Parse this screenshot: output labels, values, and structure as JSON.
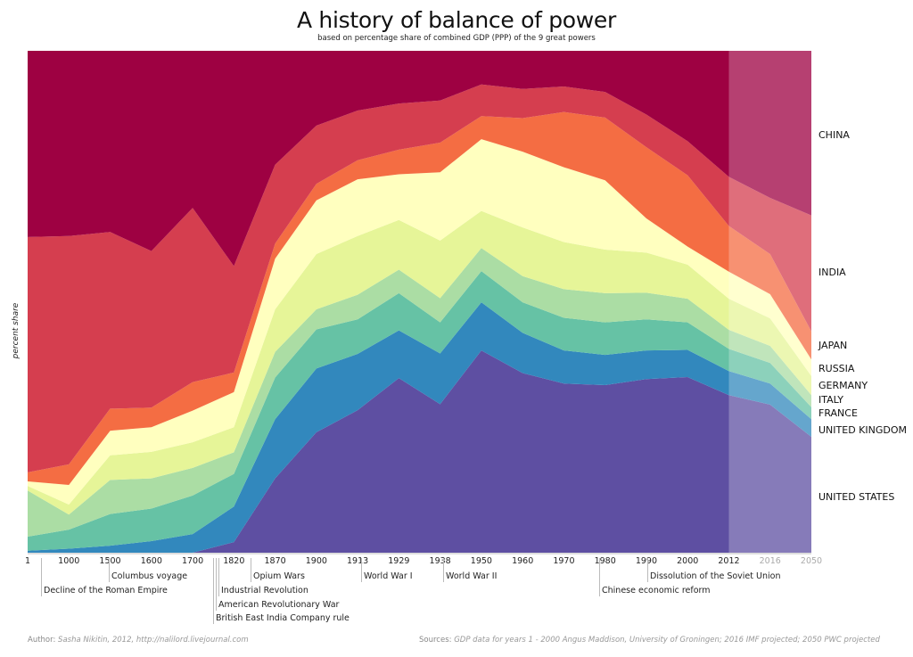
{
  "chart_data": {
    "type": "area",
    "stacked": true,
    "title": "A history of  balance of power",
    "subtitle": "based on percentage share of combined GDP (PPP) of the 9 great powers",
    "ylabel": "percent share",
    "xlabel": "",
    "ylim": [
      0,
      100
    ],
    "categories": [
      "1",
      "1000",
      "1500",
      "1600",
      "1700",
      "1820",
      "1870",
      "1900",
      "1913",
      "1929",
      "1938",
      "1950",
      "1960",
      "1970",
      "1980",
      "1990",
      "2000",
      "2012",
      "2016",
      "2050"
    ],
    "projected_categories": [
      "2016",
      "2050"
    ],
    "series": [
      {
        "name": "UNITED STATES",
        "color": "#5e4fa2",
        "values": [
          0,
          0,
          0,
          0,
          0,
          2.1,
          14.8,
          24.0,
          28.4,
          34.8,
          29.6,
          40.3,
          35.8,
          33.7,
          33.4,
          34.6,
          35.0,
          31.4,
          29.5,
          23.1
        ]
      },
      {
        "name": "UNITED KINGDOM",
        "color": "#3288bd",
        "values": [
          0.4,
          0.8,
          1.4,
          2.3,
          3.7,
          7.1,
          11.8,
          12.7,
          11.2,
          9.5,
          10.1,
          9.6,
          8.0,
          6.6,
          6.0,
          5.7,
          5.4,
          4.8,
          4.2,
          3.5
        ]
      },
      {
        "name": "FRANCE",
        "color": "#66c2a5",
        "values": [
          2.8,
          3.8,
          6.3,
          6.5,
          7.7,
          6.5,
          8.3,
          7.8,
          6.9,
          7.4,
          6.2,
          6.2,
          6.1,
          6.5,
          6.5,
          6.2,
          5.5,
          4.4,
          4.1,
          2.4
        ]
      },
      {
        "name": "ITALY",
        "color": "#abdda4",
        "values": [
          9.2,
          3.0,
          6.8,
          6.0,
          5.5,
          4.3,
          5.1,
          4.0,
          4.9,
          4.7,
          4.8,
          4.6,
          5.2,
          5.7,
          5.8,
          5.3,
          4.7,
          3.8,
          3.4,
          2.4
        ]
      },
      {
        "name": "GERMANY",
        "color": "#e6f598",
        "values": [
          0.9,
          2.0,
          4.9,
          5.3,
          5.1,
          5.0,
          8.5,
          11.0,
          11.7,
          9.9,
          11.5,
          7.4,
          9.7,
          9.4,
          8.7,
          8.0,
          6.8,
          6.2,
          5.5,
          3.8
        ]
      },
      {
        "name": "RUSSIA",
        "color": "#ffffbf",
        "values": [
          0.9,
          3.9,
          4.9,
          4.9,
          6.3,
          7.0,
          10.1,
          10.7,
          11.3,
          9.1,
          13.6,
          14.3,
          15.1,
          14.9,
          13.8,
          6.8,
          3.6,
          5.4,
          4.8,
          3.3
        ]
      },
      {
        "name": "JAPAN",
        "color": "#f46d43",
        "values": [
          1.8,
          4.1,
          4.4,
          3.9,
          5.7,
          3.9,
          3.0,
          3.3,
          3.8,
          4.9,
          5.9,
          4.6,
          6.7,
          11.0,
          12.5,
          14.2,
          14.2,
          9.1,
          8.0,
          5.6
        ]
      },
      {
        "name": "INDIA",
        "color": "#d53e4f",
        "values": [
          46.9,
          45.5,
          35.2,
          31.2,
          34.7,
          21.2,
          15.7,
          11.6,
          9.9,
          9.2,
          8.4,
          6.3,
          5.8,
          5.1,
          5.1,
          6.5,
          6.8,
          9.8,
          11.2,
          23.1
        ]
      },
      {
        "name": "CHINA",
        "color": "#9e0142",
        "values": [
          37.1,
          36.9,
          36.1,
          39.9,
          31.3,
          42.9,
          22.7,
          14.9,
          11.9,
          10.5,
          9.9,
          6.7,
          7.6,
          7.1,
          8.2,
          12.7,
          18.0,
          25.1,
          29.3,
          32.8
        ]
      }
    ],
    "events": [
      {
        "label": "Decline of the Roman Empire"
      },
      {
        "label": "Columbus voyage"
      },
      {
        "label": "British East India Company rule"
      },
      {
        "label": "American Revolutionary War"
      },
      {
        "label": "Industrial Revolution"
      },
      {
        "label": "Opium Wars"
      },
      {
        "label": "World War I"
      },
      {
        "label": "World War II"
      },
      {
        "label": "Chinese economic reform"
      },
      {
        "label": "Dissolution of the Soviet Union"
      }
    ]
  },
  "footer": {
    "author_label": "Author:",
    "author": "Sasha Nikitin, 2012, http://nalilord.livejournal.com",
    "sources_label": "Sources:",
    "sources": "GDP data for years 1 - 2000 Angus Maddison, University of Groningen;  2016 IMF projected;  2050 PWC projected"
  }
}
